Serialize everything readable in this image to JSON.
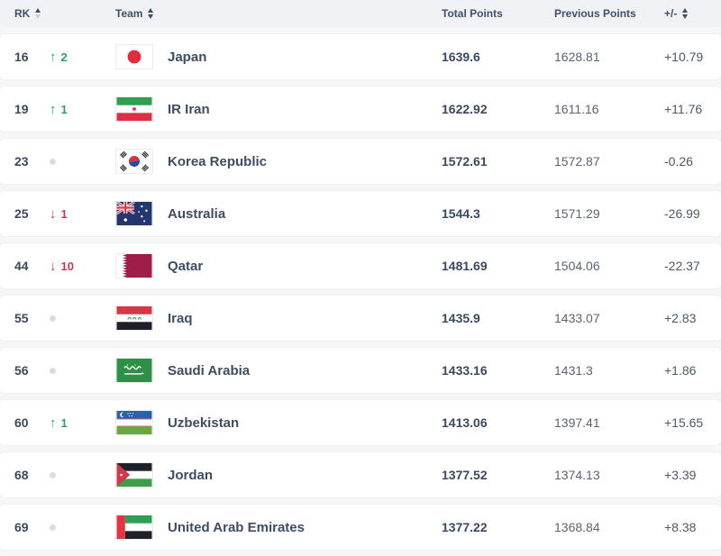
{
  "table": {
    "columns": {
      "rk": "RK",
      "team": "Team",
      "total": "Total Points",
      "previous": "Previous Points",
      "delta": "+/-"
    },
    "colors": {
      "up_green": "#27a35f",
      "down_red": "#c43a5e",
      "header_text": "#41506a",
      "body_text": "#3b4a5e",
      "neutral_dot": "#d9dce2"
    },
    "rows": [
      {
        "rank": "16",
        "change": "up",
        "change_value": "2",
        "team": "Japan",
        "flag": "japan",
        "total": "1639.6",
        "previous": "1628.81",
        "delta": "+10.79"
      },
      {
        "rank": "19",
        "change": "up",
        "change_value": "1",
        "team": "IR Iran",
        "flag": "ir-iran",
        "total": "1622.92",
        "previous": "1611.16",
        "delta": "+11.76"
      },
      {
        "rank": "23",
        "change": "none",
        "change_value": "",
        "team": "Korea Republic",
        "flag": "korea-republic",
        "total": "1572.61",
        "previous": "1572.87",
        "delta": "-0.26"
      },
      {
        "rank": "25",
        "change": "down",
        "change_value": "1",
        "team": "Australia",
        "flag": "australia",
        "total": "1544.3",
        "previous": "1571.29",
        "delta": "-26.99"
      },
      {
        "rank": "44",
        "change": "down",
        "change_value": "10",
        "team": "Qatar",
        "flag": "qatar",
        "total": "1481.69",
        "previous": "1504.06",
        "delta": "-22.37"
      },
      {
        "rank": "55",
        "change": "none",
        "change_value": "",
        "team": "Iraq",
        "flag": "iraq",
        "total": "1435.9",
        "previous": "1433.07",
        "delta": "+2.83"
      },
      {
        "rank": "56",
        "change": "none",
        "change_value": "",
        "team": "Saudi Arabia",
        "flag": "saudi-arabia",
        "total": "1433.16",
        "previous": "1431.3",
        "delta": "+1.86"
      },
      {
        "rank": "60",
        "change": "up",
        "change_value": "1",
        "team": "Uzbekistan",
        "flag": "uzbekistan",
        "total": "1413.06",
        "previous": "1397.41",
        "delta": "+15.65"
      },
      {
        "rank": "68",
        "change": "none",
        "change_value": "",
        "team": "Jordan",
        "flag": "jordan",
        "total": "1377.52",
        "previous": "1374.13",
        "delta": "+3.39"
      },
      {
        "rank": "69",
        "change": "none",
        "change_value": "",
        "team": "United Arab Emirates",
        "flag": "united-arab-emirates",
        "total": "1377.22",
        "previous": "1368.84",
        "delta": "+8.38"
      }
    ]
  }
}
